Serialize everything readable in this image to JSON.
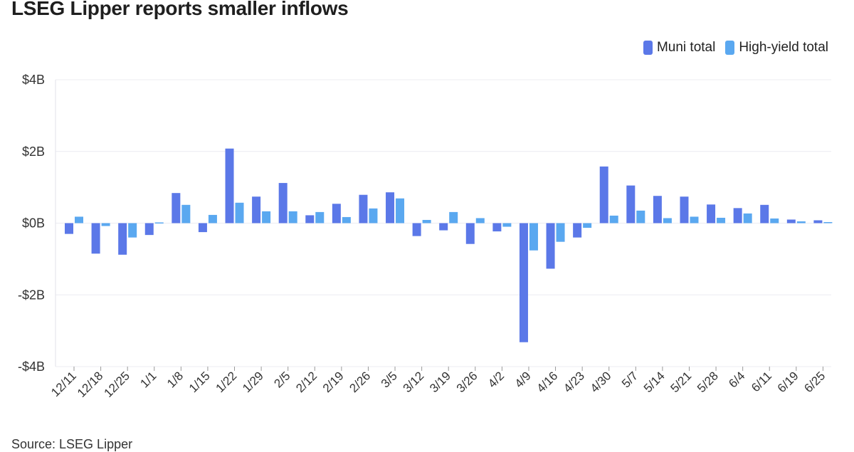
{
  "header": {
    "title": "LSEG Lipper reports smaller inflows"
  },
  "footer": {
    "source": "Source: LSEG Lipper"
  },
  "chart_data": {
    "type": "bar",
    "title": "LSEG Lipper reports smaller inflows",
    "xlabel": "",
    "ylabel": "",
    "ylim": [
      -4,
      4
    ],
    "yticks": [
      {
        "value": 4,
        "label": "$4B"
      },
      {
        "value": 2,
        "label": "$2B"
      },
      {
        "value": 0,
        "label": "$0B"
      },
      {
        "value": -2,
        "label": "-$2B"
      },
      {
        "value": -4,
        "label": "-$4B"
      }
    ],
    "grid": true,
    "legend_position": "top-right",
    "categories": [
      "12/11",
      "12/18",
      "12/25",
      "1/1",
      "1/8",
      "1/15",
      "1/22",
      "1/29",
      "2/5",
      "2/12",
      "2/19",
      "2/26",
      "3/5",
      "3/12",
      "3/19",
      "3/26",
      "4/2",
      "4/9",
      "4/16",
      "4/23",
      "4/30",
      "5/7",
      "5/14",
      "5/21",
      "5/28",
      "6/4",
      "6/11",
      "6/19",
      "6/25"
    ],
    "series": [
      {
        "name": "Muni total",
        "color": "#5b78e8",
        "values": [
          -0.3,
          -0.85,
          -0.88,
          -0.33,
          0.84,
          -0.25,
          2.08,
          0.74,
          1.12,
          0.22,
          0.54,
          0.79,
          0.86,
          -0.36,
          -0.2,
          -0.58,
          -0.23,
          -3.32,
          -1.27,
          -0.4,
          1.58,
          1.05,
          0.76,
          0.74,
          0.52,
          0.42,
          0.51,
          0.1,
          0.08
        ]
      },
      {
        "name": "High-yield total",
        "color": "#5aa8f0",
        "values": [
          0.18,
          -0.08,
          -0.4,
          0.02,
          0.51,
          0.23,
          0.57,
          0.33,
          0.33,
          0.31,
          0.17,
          0.41,
          0.69,
          0.09,
          0.31,
          0.14,
          -0.1,
          -0.76,
          -0.52,
          -0.13,
          0.21,
          0.35,
          0.14,
          0.18,
          0.15,
          0.27,
          0.13,
          0.05,
          0.03
        ]
      }
    ]
  }
}
